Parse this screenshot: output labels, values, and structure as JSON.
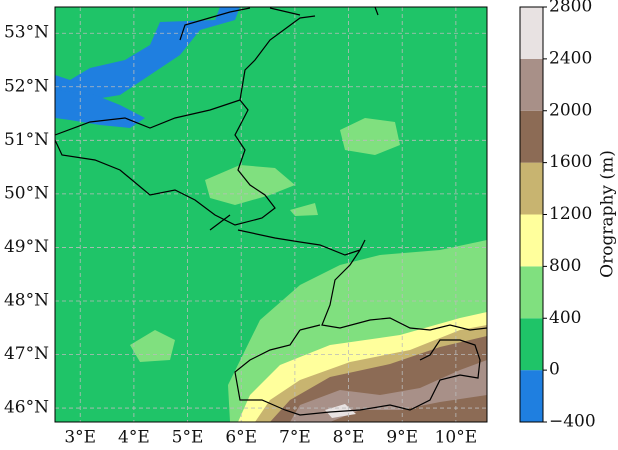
{
  "map": {
    "latlim": [
      45.74,
      53.49
    ],
    "lonlim": [
      2.53,
      10.58
    ],
    "grid": true,
    "lat_ticks": [
      {
        "value": 46,
        "label": "46°N"
      },
      {
        "value": 47,
        "label": "47°N"
      },
      {
        "value": 48,
        "label": "48°N"
      },
      {
        "value": 49,
        "label": "49°N"
      },
      {
        "value": 50,
        "label": "50°N"
      },
      {
        "value": 51,
        "label": "51°N"
      },
      {
        "value": 52,
        "label": "52°N"
      },
      {
        "value": 53,
        "label": "53°N"
      }
    ],
    "lon_ticks": [
      {
        "value": 3,
        "label": "3°E"
      },
      {
        "value": 4,
        "label": "4°E"
      },
      {
        "value": 5,
        "label": "5°E"
      },
      {
        "value": 6,
        "label": "6°E"
      },
      {
        "value": 7,
        "label": "7°E"
      },
      {
        "value": 8,
        "label": "8°E"
      },
      {
        "value": 9,
        "label": "9°E"
      },
      {
        "value": 10,
        "label": "10°E"
      }
    ],
    "colorbar": {
      "label": "Orography (m)",
      "lim": [
        -400,
        2800
      ],
      "ticks": [
        {
          "value": -400,
          "label": "−400"
        },
        0,
        400,
        800,
        1200,
        1600,
        2000,
        2400,
        2800
      ],
      "colors": [
        "#1f7fe0",
        "#1fc468",
        "#80e07f",
        "#ffff9c",
        "#c8b470",
        "#8c6b55",
        "#a89088",
        "#e8e2e2"
      ]
    }
  }
}
